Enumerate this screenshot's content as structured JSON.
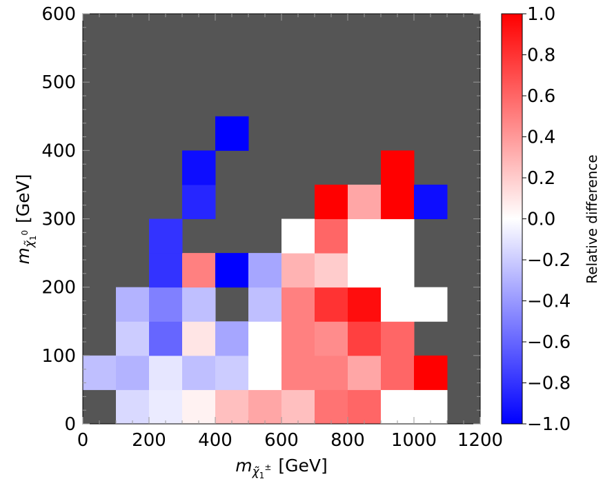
{
  "chart_data": {
    "type": "heatmap",
    "title": "",
    "xlabel": {
      "base": "m",
      "sub": "χ̃",
      "subsub": "1",
      "subsup": "±",
      "unit": "[GeV]"
    },
    "ylabel": {
      "base": "m",
      "sub": "χ̃",
      "subsub": "1",
      "subsup": "0",
      "unit": "[GeV]"
    },
    "xlim": [
      0,
      1200
    ],
    "ylim": [
      0,
      600
    ],
    "xticks": [
      "0",
      "200",
      "400",
      "600",
      "800",
      "1000",
      "1200"
    ],
    "yticks": [
      "0",
      "100",
      "200",
      "300",
      "400",
      "500",
      "600"
    ],
    "background_color": "#555555",
    "colorbar": {
      "label": "Relative difference",
      "range": [
        -1.0,
        1.0
      ],
      "ticks": [
        "−1.0",
        "−0.8",
        "−0.6",
        "−0.4",
        "−0.2",
        "0.0",
        "0.2",
        "0.4",
        "0.6",
        "0.8",
        "1.0"
      ],
      "colormap": "bwr"
    },
    "bin_width_x": 100,
    "bin_height_y": 50,
    "cells": [
      {
        "x": 100,
        "y": 0,
        "value": -0.15
      },
      {
        "x": 200,
        "y": 0,
        "value": -0.08
      },
      {
        "x": 300,
        "y": 0,
        "value": 0.05
      },
      {
        "x": 400,
        "y": 0,
        "value": 0.25
      },
      {
        "x": 500,
        "y": 0,
        "value": 0.35
      },
      {
        "x": 600,
        "y": 0,
        "value": 0.25
      },
      {
        "x": 700,
        "y": 0,
        "value": 0.55
      },
      {
        "x": 800,
        "y": 0,
        "value": 0.6
      },
      {
        "x": 900,
        "y": 0,
        "value": 0.0
      },
      {
        "x": 1000,
        "y": 0,
        "value": 0.0
      },
      {
        "x": 0,
        "y": 50,
        "value": -0.25
      },
      {
        "x": 100,
        "y": 50,
        "value": -0.3
      },
      {
        "x": 200,
        "y": 50,
        "value": -0.1
      },
      {
        "x": 300,
        "y": 50,
        "value": -0.25
      },
      {
        "x": 400,
        "y": 50,
        "value": -0.2
      },
      {
        "x": 500,
        "y": 50,
        "value": 0.0
      },
      {
        "x": 600,
        "y": 50,
        "value": 0.5
      },
      {
        "x": 700,
        "y": 50,
        "value": 0.5
      },
      {
        "x": 800,
        "y": 50,
        "value": 0.35
      },
      {
        "x": 900,
        "y": 50,
        "value": 0.6
      },
      {
        "x": 1000,
        "y": 50,
        "value": 1.0
      },
      {
        "x": 100,
        "y": 100,
        "value": -0.2
      },
      {
        "x": 200,
        "y": 100,
        "value": -0.6
      },
      {
        "x": 300,
        "y": 100,
        "value": 0.1
      },
      {
        "x": 400,
        "y": 100,
        "value": -0.35
      },
      {
        "x": 500,
        "y": 100,
        "value": 0.0
      },
      {
        "x": 600,
        "y": 100,
        "value": 0.5
      },
      {
        "x": 700,
        "y": 100,
        "value": 0.45
      },
      {
        "x": 800,
        "y": 100,
        "value": 0.75
      },
      {
        "x": 900,
        "y": 100,
        "value": 0.6
      },
      {
        "x": 100,
        "y": 150,
        "value": -0.3
      },
      {
        "x": 200,
        "y": 150,
        "value": -0.5
      },
      {
        "x": 300,
        "y": 150,
        "value": -0.25
      },
      {
        "x": 500,
        "y": 150,
        "value": -0.25
      },
      {
        "x": 600,
        "y": 150,
        "value": 0.5
      },
      {
        "x": 700,
        "y": 150,
        "value": 0.8
      },
      {
        "x": 800,
        "y": 150,
        "value": 0.95
      },
      {
        "x": 900,
        "y": 150,
        "value": 0.0
      },
      {
        "x": 1000,
        "y": 150,
        "value": 0.0
      },
      {
        "x": 200,
        "y": 200,
        "value": -0.8
      },
      {
        "x": 300,
        "y": 200,
        "value": 0.5
      },
      {
        "x": 400,
        "y": 200,
        "value": -1.0
      },
      {
        "x": 500,
        "y": 200,
        "value": -0.35
      },
      {
        "x": 600,
        "y": 200,
        "value": 0.3
      },
      {
        "x": 700,
        "y": 200,
        "value": 0.2
      },
      {
        "x": 800,
        "y": 200,
        "value": 0.0
      },
      {
        "x": 900,
        "y": 200,
        "value": 0.0
      },
      {
        "x": 200,
        "y": 250,
        "value": -0.8
      },
      {
        "x": 600,
        "y": 250,
        "value": 0.0
      },
      {
        "x": 700,
        "y": 250,
        "value": 0.6
      },
      {
        "x": 800,
        "y": 250,
        "value": 0.0
      },
      {
        "x": 900,
        "y": 250,
        "value": 0.0
      },
      {
        "x": 300,
        "y": 300,
        "value": -0.85
      },
      {
        "x": 700,
        "y": 300,
        "value": 1.0
      },
      {
        "x": 800,
        "y": 300,
        "value": 0.35
      },
      {
        "x": 900,
        "y": 300,
        "value": 1.0
      },
      {
        "x": 1000,
        "y": 300,
        "value": -0.95
      },
      {
        "x": 300,
        "y": 350,
        "value": -0.95
      },
      {
        "x": 900,
        "y": 350,
        "value": 1.0
      },
      {
        "x": 400,
        "y": 400,
        "value": -1.0
      }
    ]
  }
}
